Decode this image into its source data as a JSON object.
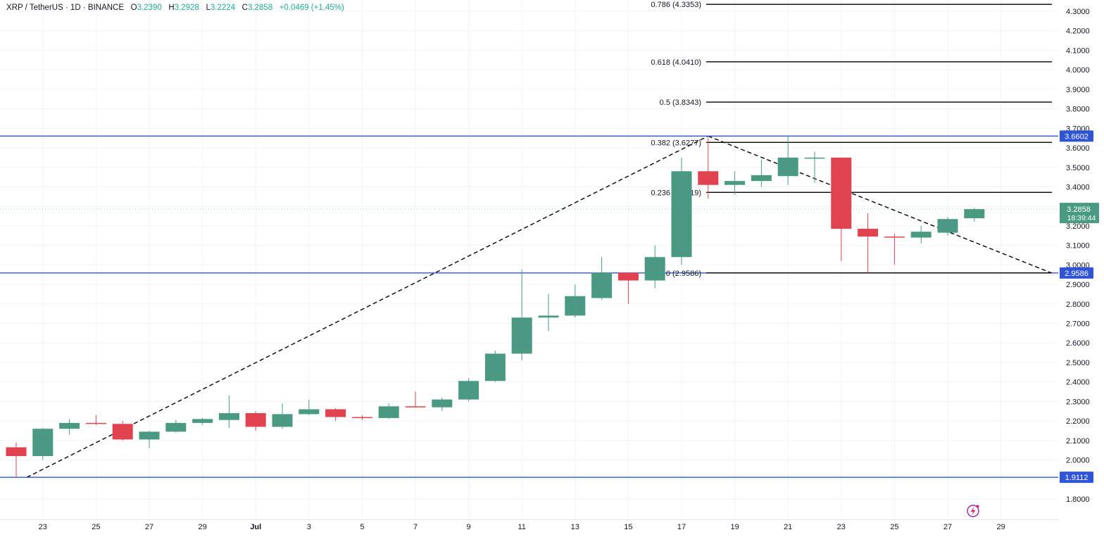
{
  "header": {
    "symbol": "XRP / TetherUS · 1D · BINANCE",
    "o_label": "O",
    "o_value": "3.2390",
    "h_label": "H",
    "h_value": "3.2928",
    "l_label": "L",
    "l_value": "3.2224",
    "c_label": "C",
    "c_value": "3.2858",
    "change": "+0.0469 (+1.45%)"
  },
  "colors": {
    "up": "#4a9a83",
    "down": "#e0424f",
    "hline": "#2f54d6",
    "grid": "#f0f3fa",
    "text": "#131722",
    "last_price": "#4a9a83"
  },
  "chart_data": {
    "type": "candlestick",
    "ylim": [
      1.72,
      4.36
    ],
    "y_ticks": [
      "1.8000",
      "1.9000",
      "2.0000",
      "2.1000",
      "2.2000",
      "2.3000",
      "2.4000",
      "2.5000",
      "2.6000",
      "2.7000",
      "2.8000",
      "2.9000",
      "3.0000",
      "3.1000",
      "3.2000",
      "3.3000",
      "3.4000",
      "3.5000",
      "3.6000",
      "3.7000",
      "3.8000",
      "3.9000",
      "4.0000",
      "4.1000",
      "4.2000",
      "4.3000"
    ],
    "x_ticks": [
      {
        "i": 1,
        "label": "23"
      },
      {
        "i": 3,
        "label": "25"
      },
      {
        "i": 5,
        "label": "27"
      },
      {
        "i": 7,
        "label": "29"
      },
      {
        "i": 9,
        "label": "Jul"
      },
      {
        "i": 11,
        "label": "3"
      },
      {
        "i": 13,
        "label": "5"
      },
      {
        "i": 15,
        "label": "7"
      },
      {
        "i": 17,
        "label": "9"
      },
      {
        "i": 19,
        "label": "11"
      },
      {
        "i": 21,
        "label": "13"
      },
      {
        "i": 23,
        "label": "15"
      },
      {
        "i": 25,
        "label": "17"
      },
      {
        "i": 27,
        "label": "19"
      },
      {
        "i": 29,
        "label": "21"
      },
      {
        "i": 31,
        "label": "23"
      },
      {
        "i": 33,
        "label": "25"
      },
      {
        "i": 35,
        "label": "27"
      },
      {
        "i": 37,
        "label": "29"
      }
    ],
    "candles": [
      {
        "o": 2.065,
        "h": 2.09,
        "l": 1.91,
        "c": 2.02
      },
      {
        "o": 2.02,
        "h": 2.165,
        "l": 2.0,
        "c": 2.16
      },
      {
        "o": 2.16,
        "h": 2.21,
        "l": 2.13,
        "c": 2.19
      },
      {
        "o": 2.19,
        "h": 2.23,
        "l": 2.18,
        "c": 2.185
      },
      {
        "o": 2.185,
        "h": 2.2,
        "l": 2.1,
        "c": 2.105
      },
      {
        "o": 2.105,
        "h": 2.15,
        "l": 2.06,
        "c": 2.145
      },
      {
        "o": 2.145,
        "h": 2.205,
        "l": 2.14,
        "c": 2.19
      },
      {
        "o": 2.19,
        "h": 2.215,
        "l": 2.18,
        "c": 2.21
      },
      {
        "o": 2.205,
        "h": 2.33,
        "l": 2.165,
        "c": 2.24
      },
      {
        "o": 2.24,
        "h": 2.25,
        "l": 2.15,
        "c": 2.17
      },
      {
        "o": 2.17,
        "h": 2.29,
        "l": 2.16,
        "c": 2.235
      },
      {
        "o": 2.235,
        "h": 2.31,
        "l": 2.23,
        "c": 2.26
      },
      {
        "o": 2.26,
        "h": 2.265,
        "l": 2.2,
        "c": 2.22
      },
      {
        "o": 2.22,
        "h": 2.23,
        "l": 2.205,
        "c": 2.215
      },
      {
        "o": 2.215,
        "h": 2.29,
        "l": 2.21,
        "c": 2.275
      },
      {
        "o": 2.275,
        "h": 2.35,
        "l": 2.27,
        "c": 2.27
      },
      {
        "o": 2.27,
        "h": 2.32,
        "l": 2.25,
        "c": 2.31
      },
      {
        "o": 2.31,
        "h": 2.42,
        "l": 2.3,
        "c": 2.405
      },
      {
        "o": 2.405,
        "h": 2.56,
        "l": 2.4,
        "c": 2.545
      },
      {
        "o": 2.545,
        "h": 2.975,
        "l": 2.51,
        "c": 2.73
      },
      {
        "o": 2.73,
        "h": 2.85,
        "l": 2.66,
        "c": 2.74
      },
      {
        "o": 2.74,
        "h": 2.9,
        "l": 2.73,
        "c": 2.84
      },
      {
        "o": 2.83,
        "h": 3.04,
        "l": 2.82,
        "c": 2.96
      },
      {
        "o": 2.96,
        "h": 2.96,
        "l": 2.8,
        "c": 2.92
      },
      {
        "o": 2.92,
        "h": 3.1,
        "l": 2.88,
        "c": 3.04
      },
      {
        "o": 3.04,
        "h": 3.55,
        "l": 3.0,
        "c": 3.48
      },
      {
        "o": 3.48,
        "h": 3.65,
        "l": 3.34,
        "c": 3.41
      },
      {
        "o": 3.41,
        "h": 3.48,
        "l": 3.36,
        "c": 3.43
      },
      {
        "o": 3.43,
        "h": 3.54,
        "l": 3.4,
        "c": 3.46
      },
      {
        "o": 3.455,
        "h": 3.66,
        "l": 3.41,
        "c": 3.55
      },
      {
        "o": 3.55,
        "h": 3.58,
        "l": 3.42,
        "c": 3.55
      },
      {
        "o": 3.55,
        "h": 3.55,
        "l": 3.02,
        "c": 3.185
      },
      {
        "o": 3.185,
        "h": 3.265,
        "l": 2.96,
        "c": 3.145
      },
      {
        "o": 3.145,
        "h": 3.16,
        "l": 3.0,
        "c": 3.14
      },
      {
        "o": 3.14,
        "h": 3.2,
        "l": 3.11,
        "c": 3.17
      },
      {
        "o": 3.165,
        "h": 3.245,
        "l": 3.15,
        "c": 3.235
      },
      {
        "o": 3.239,
        "h": 3.2928,
        "l": 3.2224,
        "c": 3.2858
      }
    ],
    "fib_levels": [
      {
        "label": "0.786 (4.3353)",
        "value": 4.3353
      },
      {
        "label": "0.618 (4.0410)",
        "value": 4.041
      },
      {
        "label": "0.5 (3.8343)",
        "value": 3.8343
      },
      {
        "label": "0.382 (3.6277)",
        "value": 3.6277
      },
      {
        "label": "0.236 (3.3719)",
        "value": 3.3719
      },
      {
        "label": "0 (2.9586)",
        "value": 2.9586
      }
    ],
    "horizontal_lines": [
      {
        "value": 3.6602,
        "label": "3.6602"
      },
      {
        "value": 2.9586,
        "label": "2.9586"
      },
      {
        "value": 1.9112,
        "label": "1.9112"
      }
    ],
    "trend_lines": [
      {
        "from": {
          "i": 0.4,
          "v": 1.9112
        },
        "to": {
          "i": 26.0,
          "v": 3.6602
        }
      },
      {
        "from": {
          "i": 26.0,
          "v": 3.6602
        },
        "to": {
          "i": 38.9,
          "v": 2.9586
        }
      }
    ],
    "last_price": {
      "value": 3.2858,
      "label": "3.2858",
      "countdown": "18:39:44"
    }
  }
}
